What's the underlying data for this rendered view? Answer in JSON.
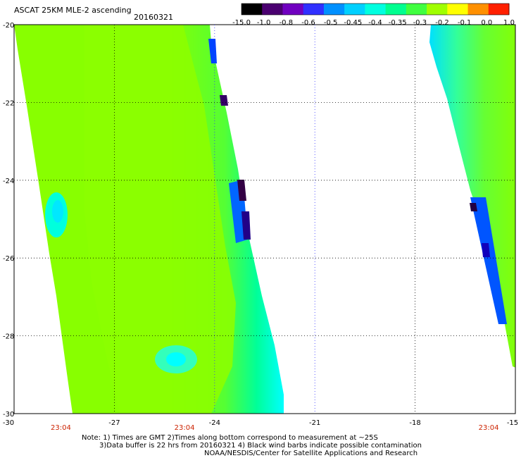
{
  "header": {
    "title": "ASCAT 25KM MLE-2 ascending",
    "date": "20160321"
  },
  "colorbar": {
    "labels": [
      "-15.0",
      "-1.0",
      "-0.8",
      "-0.6",
      "-0.5",
      "-0.45",
      "-0.4",
      "-0.35",
      "-0.3",
      "-0.2",
      "-0.1",
      "0.0",
      "1.0"
    ],
    "colors": [
      "#000000",
      "#4a0070",
      "#7000c0",
      "#3030ff",
      "#0090ff",
      "#00d0ff",
      "#00ffe0",
      "#00ff90",
      "#40ff40",
      "#a0ff00",
      "#ffff00",
      "#ff9000",
      "#ff2000"
    ]
  },
  "map": {
    "lon_ticks": [
      -30,
      -27,
      -24,
      -21,
      -18,
      -15
    ],
    "lat_ticks": [
      -20,
      -22,
      -24,
      -26,
      -28,
      -30
    ],
    "lon_labels": [
      "-30",
      "-27",
      "-24",
      "-21",
      "-18",
      "-15"
    ],
    "lat_labels": [
      "-20",
      "-22",
      "-24",
      "-26",
      "-28",
      "-30"
    ],
    "time_labels": [
      "23:04",
      "23:04",
      "23:04"
    ],
    "background_swath_color": "#88ff00",
    "swath_colors": {
      "mid": "#66ff33",
      "light": "#33ff99",
      "cyan": "#00ffff",
      "blue": "#0066ff",
      "deep": "#2200aa",
      "dark": "#330033"
    }
  },
  "footer": {
    "line1": "Note: 1) Times are GMT 2)Times along bottom correspond to measurement at ~25S",
    "line2": "3)Data buffer is 22 hrs from 20160321 4) Black wind barbs indicate possible contamination",
    "line3": "NOAA/NESDIS/Center for Satellite Applications and Research"
  }
}
